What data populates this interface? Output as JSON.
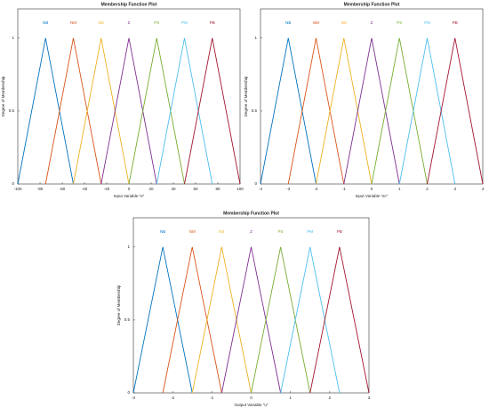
{
  "chart_data": [
    {
      "type": "line",
      "title": "Membership Function Plot",
      "x_label": "Input Variable \"e\"",
      "y_label": "Degree of Membership",
      "x": [
        -100,
        -75,
        -50,
        -25,
        0,
        25,
        50,
        75,
        100
      ],
      "xlim": [
        -100,
        100
      ],
      "xticks": [
        -100,
        -80,
        -60,
        -40,
        -20,
        0,
        20,
        40,
        60,
        80,
        100
      ],
      "ylim": [
        0,
        1.2
      ],
      "yticks": [
        0,
        0.5,
        1
      ],
      "series": [
        {
          "name": "NB",
          "color": "#0072bd",
          "values": [
            0,
            1,
            0,
            null,
            null,
            null,
            null,
            null,
            null
          ]
        },
        {
          "name": "NM",
          "color": "#d95319",
          "values": [
            null,
            0,
            1,
            0,
            null,
            null,
            null,
            null,
            null
          ]
        },
        {
          "name": "NS",
          "color": "#edb120",
          "values": [
            null,
            null,
            0,
            1,
            0,
            null,
            null,
            null,
            null
          ]
        },
        {
          "name": "Z",
          "color": "#7e2f8e",
          "values": [
            null,
            null,
            null,
            0,
            1,
            0,
            null,
            null,
            null
          ]
        },
        {
          "name": "PS",
          "color": "#77ac30",
          "values": [
            null,
            null,
            null,
            null,
            0,
            1,
            0,
            null,
            null
          ]
        },
        {
          "name": "PM",
          "color": "#4dbeee",
          "values": [
            null,
            null,
            null,
            null,
            null,
            0,
            1,
            0,
            null
          ]
        },
        {
          "name": "PB",
          "color": "#a2142f",
          "values": [
            null,
            null,
            null,
            null,
            null,
            null,
            0,
            1,
            0
          ]
        }
      ]
    },
    {
      "type": "line",
      "title": "Membership Function Plot",
      "x_label": "Input Variable \"ec\"",
      "y_label": "Degree of Membership",
      "x": [
        -4,
        -3,
        -2,
        -1,
        0,
        1,
        2,
        3,
        4
      ],
      "xlim": [
        -4,
        4
      ],
      "xticks": [
        -4,
        -3,
        -2,
        -1,
        0,
        1,
        2,
        3,
        4
      ],
      "ylim": [
        0,
        1.2
      ],
      "yticks": [
        0,
        0.5,
        1
      ],
      "series": [
        {
          "name": "NB",
          "color": "#0072bd",
          "values": [
            0,
            1,
            0,
            null,
            null,
            null,
            null,
            null,
            null
          ]
        },
        {
          "name": "NM",
          "color": "#d95319",
          "values": [
            null,
            0,
            1,
            0,
            null,
            null,
            null,
            null,
            null
          ]
        },
        {
          "name": "NS",
          "color": "#edb120",
          "values": [
            null,
            null,
            0,
            1,
            0,
            null,
            null,
            null,
            null
          ]
        },
        {
          "name": "Z",
          "color": "#7e2f8e",
          "values": [
            null,
            null,
            null,
            0,
            1,
            0,
            null,
            null,
            null
          ]
        },
        {
          "name": "PS",
          "color": "#77ac30",
          "values": [
            null,
            null,
            null,
            null,
            0,
            1,
            0,
            null,
            null
          ]
        },
        {
          "name": "PM",
          "color": "#4dbeee",
          "values": [
            null,
            null,
            null,
            null,
            null,
            0,
            1,
            0,
            null
          ]
        },
        {
          "name": "PB",
          "color": "#a2142f",
          "values": [
            null,
            null,
            null,
            null,
            null,
            null,
            0,
            1,
            0
          ]
        }
      ]
    },
    {
      "type": "line",
      "title": "Membership Function Plot",
      "x_label": "Output Variable \"u\"",
      "y_label": "Degree of Membership",
      "x": [
        -3,
        -2.25,
        -1.5,
        -0.75,
        0,
        0.75,
        1.5,
        2.25,
        3
      ],
      "xlim": [
        -3,
        3
      ],
      "xticks": [
        -3,
        -2,
        -1,
        0,
        1,
        2,
        3
      ],
      "ylim": [
        0,
        1.2
      ],
      "yticks": [
        0,
        0.5,
        1
      ],
      "series": [
        {
          "name": "NB",
          "color": "#0072bd",
          "values": [
            0,
            1,
            0,
            null,
            null,
            null,
            null,
            null,
            null
          ]
        },
        {
          "name": "NM",
          "color": "#d95319",
          "values": [
            null,
            0,
            1,
            0,
            null,
            null,
            null,
            null,
            null
          ]
        },
        {
          "name": "NS",
          "color": "#edb120",
          "values": [
            null,
            null,
            0,
            1,
            0,
            null,
            null,
            null,
            null
          ]
        },
        {
          "name": "Z",
          "color": "#7e2f8e",
          "values": [
            null,
            null,
            null,
            0,
            1,
            0,
            null,
            null,
            null
          ]
        },
        {
          "name": "PS",
          "color": "#77ac30",
          "values": [
            null,
            null,
            null,
            null,
            0,
            1,
            0,
            null,
            null
          ]
        },
        {
          "name": "PM",
          "color": "#4dbeee",
          "values": [
            null,
            null,
            null,
            null,
            null,
            0,
            1,
            0,
            null
          ]
        },
        {
          "name": "PB",
          "color": "#a2142f",
          "values": [
            null,
            null,
            null,
            null,
            null,
            null,
            0,
            1,
            0
          ]
        }
      ]
    }
  ]
}
